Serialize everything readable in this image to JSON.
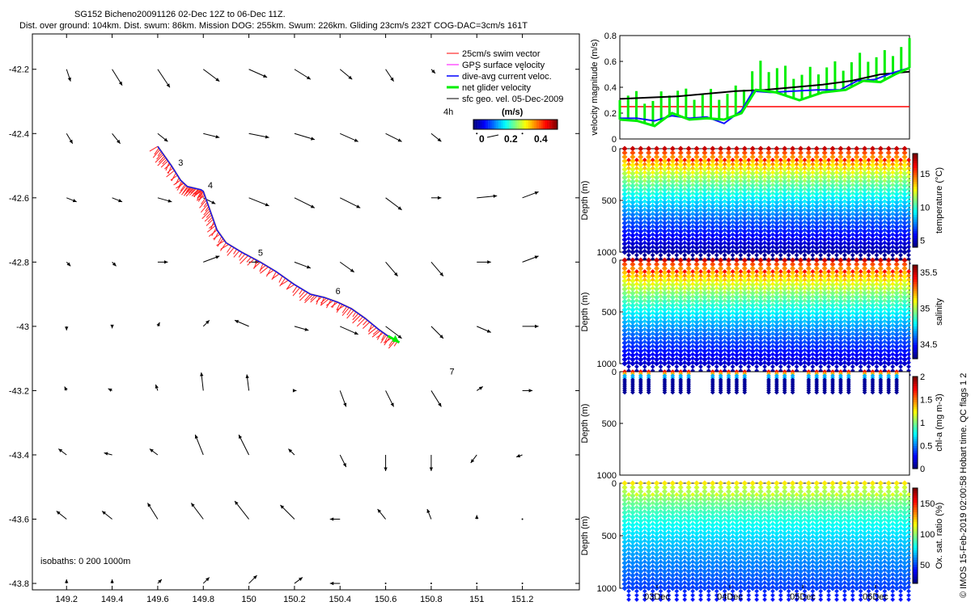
{
  "title_line1": "SG152 Bicheno20091126 02-Dec 12Z to 06-Dec 11Z.",
  "title_line2": "Dist. over ground: 104km. Dist. swum: 86km. Mission DOG: 255km. Swum: 226km. Gliding 23cm/s 232T COG-DAC=3cm/s 161T",
  "copyright": "© IMOS 15-Feb-2019 02:00:58 Hobart time. QC flags 1  2",
  "chart_data": [
    {
      "id": "map",
      "type": "scatter",
      "title": "SG152 glider track with current vectors",
      "xlim": [
        149.05,
        151.45
      ],
      "ylim": [
        -43.82,
        -42.09
      ],
      "xticks": [
        149.2,
        149.4,
        149.6,
        149.8,
        150,
        150.2,
        150.4,
        150.6,
        150.8,
        151,
        151.2
      ],
      "xtick_labels": [
        "149.2",
        "149.4",
        "149.6",
        "149.8",
        "150",
        "150.2",
        "150.4",
        "150.6",
        "150.8",
        "151",
        "151.2"
      ],
      "yticks": [
        -42.2,
        -42.4,
        -42.6,
        -42.8,
        -43,
        -43.2,
        -43.4,
        -43.6,
        -43.8
      ],
      "ytick_labels": [
        "-42.2",
        "-42.4",
        "-42.6",
        "-42.8",
        "-43",
        "-43.2",
        "-43.4",
        "-43.6",
        "-43.8"
      ],
      "legend": [
        "25cm/s swim vector",
        "GPS surface velocity",
        "dive-avg current veloc.",
        "net glider velocity",
        "sfc geo. vel. 05-Dec-2009"
      ],
      "legend_placement": "top-right",
      "track": [
        [
          149.6,
          -42.44
        ],
        [
          149.63,
          -42.47
        ],
        [
          149.66,
          -42.5
        ],
        [
          149.7,
          -42.545
        ],
        [
          149.73,
          -42.565
        ],
        [
          149.76,
          -42.57
        ],
        [
          149.79,
          -42.575
        ],
        [
          149.8,
          -42.58
        ],
        [
          149.82,
          -42.62
        ],
        [
          149.84,
          -42.66
        ],
        [
          149.86,
          -42.7
        ],
        [
          149.9,
          -42.74
        ],
        [
          149.97,
          -42.77
        ],
        [
          150.05,
          -42.8
        ],
        [
          150.12,
          -42.83
        ],
        [
          150.2,
          -42.87
        ],
        [
          150.27,
          -42.9
        ],
        [
          150.33,
          -42.91
        ],
        [
          150.39,
          -42.925
        ],
        [
          150.45,
          -42.945
        ],
        [
          150.51,
          -42.975
        ],
        [
          150.57,
          -43.01
        ],
        [
          150.61,
          -43.03
        ],
        [
          150.66,
          -43.05
        ]
      ],
      "time_markers": [
        {
          "label": "3",
          "lon": 149.69,
          "lat": -42.5
        },
        {
          "label": "4",
          "lon": 149.82,
          "lat": -42.57
        },
        {
          "label": "5",
          "lon": 150.04,
          "lat": -42.78
        },
        {
          "label": "6",
          "lon": 150.38,
          "lat": -42.9
        },
        {
          "label": "7",
          "lon": 150.88,
          "lat": -43.15
        }
      ],
      "current_vectors": {
        "lons": [
          149.2,
          149.4,
          149.6,
          149.8,
          150,
          150.2,
          150.4,
          150.6,
          150.8,
          151,
          151.2
        ],
        "lats": [
          -42.2,
          -42.4,
          -42.6,
          -42.8,
          -43,
          -43.2,
          -43.4,
          -43.6,
          -43.8
        ],
        "u": [
          [
            0.02,
            0.05,
            0.06,
            0.08,
            0.09,
            0.08,
            0.06,
            0.04,
            0.02,
            0.0,
            0.0
          ],
          [
            0.03,
            0.04,
            0.05,
            0.08,
            0.1,
            0.1,
            0.09,
            0.08,
            0.05,
            0.0,
            0.0
          ],
          [
            0.05,
            0.05,
            0.07,
            0.06,
            0.1,
            0.1,
            0.1,
            0.08,
            0.05,
            0.1,
            0.08
          ],
          [
            0.02,
            0.02,
            0.05,
            0.08,
            0.05,
            0.08,
            0.07,
            0.06,
            0.06,
            0.07,
            0.08
          ],
          [
            0.0,
            0.0,
            0.01,
            0.03,
            -0.07,
            0.07,
            0.09,
            0.08,
            0.06,
            0.07,
            0.08
          ],
          [
            -0.01,
            -0.02,
            -0.01,
            -0.01,
            -0.01,
            0.01,
            0.03,
            0.04,
            0.05,
            0.03,
            0.05
          ],
          [
            -0.04,
            -0.04,
            -0.04,
            -0.04,
            -0.05,
            -0.03,
            0.03,
            0.0,
            0.0,
            -0.03,
            -0.03
          ],
          [
            -0.05,
            -0.05,
            -0.05,
            -0.06,
            -0.07,
            -0.07,
            -0.05,
            -0.04,
            -0.02,
            0.0,
            0.0
          ],
          [
            0.0,
            0.0,
            0.02,
            0.03,
            0.04,
            0.04,
            -0.05,
            0.0,
            0.0,
            0.0,
            0.0
          ]
        ],
        "v": [
          [
            -0.06,
            -0.08,
            -0.09,
            -0.06,
            -0.04,
            -0.05,
            -0.05,
            -0.06,
            -0.02,
            0.0,
            0.0
          ],
          [
            -0.05,
            -0.05,
            -0.04,
            -0.02,
            -0.02,
            -0.03,
            -0.04,
            -0.04,
            -0.04,
            0.0,
            0.0
          ],
          [
            -0.02,
            -0.02,
            -0.02,
            -0.03,
            -0.04,
            -0.05,
            -0.05,
            -0.06,
            0.0,
            0.01,
            0.03
          ],
          [
            -0.02,
            -0.02,
            0.0,
            0.03,
            0.0,
            -0.03,
            -0.05,
            -0.07,
            -0.07,
            0.0,
            0.03
          ],
          [
            -0.02,
            -0.01,
            0.02,
            0.03,
            0.03,
            -0.02,
            -0.04,
            -0.06,
            -0.06,
            -0.03,
            0.0
          ],
          [
            0.02,
            0.01,
            0.03,
            0.09,
            0.08,
            0.0,
            -0.08,
            -0.08,
            -0.08,
            0.02,
            0.0
          ],
          [
            0.03,
            0.01,
            0.03,
            0.1,
            0.1,
            0.03,
            -0.06,
            -0.08,
            -0.08,
            -0.04,
            -0.01
          ],
          [
            0.04,
            0.04,
            0.08,
            0.08,
            0.09,
            0.07,
            0.0,
            0.05,
            0.05,
            0.02,
            0.0
          ],
          [
            0.02,
            0.02,
            0.02,
            0.03,
            0.04,
            0.03,
            0.0,
            0.0,
            0.0,
            0.0,
            0.0
          ]
        ]
      },
      "scale_label": "4h",
      "colorbar_label": "(m/s)",
      "colorbar_ticks": [
        "0",
        "0.2",
        "0.4"
      ],
      "isobaths_label": "isobaths: 0   200  1000m"
    },
    {
      "id": "velocity",
      "type": "line",
      "ylabel": "velocity magnitude (m/s)",
      "ylim": [
        0,
        0.8
      ],
      "yticks": [
        "0",
        "0.2",
        "0.4",
        "0.6",
        "0.8"
      ],
      "reference_line": 0.25,
      "series": [
        {
          "name": "sfc geo. vel.",
          "color": "#000000",
          "values": [
            [
              0,
              0.31
            ],
            [
              0.1,
              0.32
            ],
            [
              0.2,
              0.33
            ],
            [
              0.3,
              0.35
            ],
            [
              0.4,
              0.37
            ],
            [
              0.5,
              0.38
            ],
            [
              0.6,
              0.4
            ],
            [
              0.7,
              0.42
            ],
            [
              0.8,
              0.45
            ],
            [
              0.9,
              0.5
            ],
            [
              1,
              0.52
            ]
          ]
        },
        {
          "name": "dive-avg current veloc.",
          "color": "#1010ff",
          "values": [
            [
              0,
              0.16
            ],
            [
              0.06,
              0.16
            ],
            [
              0.12,
              0.14
            ],
            [
              0.18,
              0.18
            ],
            [
              0.24,
              0.16
            ],
            [
              0.3,
              0.17
            ],
            [
              0.36,
              0.12
            ],
            [
              0.42,
              0.22
            ],
            [
              0.46,
              0.37
            ],
            [
              0.52,
              0.36
            ],
            [
              0.6,
              0.37
            ],
            [
              0.68,
              0.38
            ],
            [
              0.76,
              0.38
            ],
            [
              0.82,
              0.45
            ],
            [
              0.88,
              0.46
            ],
            [
              0.94,
              0.51
            ],
            [
              1,
              0.55
            ]
          ]
        },
        {
          "name": "net glider velocity",
          "color": "#00ee00",
          "values": [
            [
              0,
              0.15
            ],
            [
              0.06,
              0.14
            ],
            [
              0.12,
              0.1
            ],
            [
              0.18,
              0.2
            ],
            [
              0.24,
              0.15
            ],
            [
              0.3,
              0.16
            ],
            [
              0.36,
              0.15
            ],
            [
              0.42,
              0.2
            ],
            [
              0.47,
              0.38
            ],
            [
              0.54,
              0.36
            ],
            [
              0.62,
              0.3
            ],
            [
              0.7,
              0.36
            ],
            [
              0.78,
              0.38
            ],
            [
              0.84,
              0.45
            ],
            [
              0.9,
              0.44
            ],
            [
              0.95,
              0.5
            ],
            [
              1,
              0.55
            ]
          ]
        }
      ]
    },
    {
      "id": "temperature",
      "type": "heatmap",
      "ylabel": "Depth (m)",
      "yticks": [
        "0",
        "500",
        "1000"
      ],
      "colorbar_label": "temperature (°C)",
      "colorbar_ticks": [
        "5",
        "10",
        "15"
      ],
      "crange": [
        4,
        18
      ],
      "surface_value": 17,
      "deep_value": 4.5,
      "max_depth": 1000,
      "dives": 36
    },
    {
      "id": "salinity",
      "type": "heatmap",
      "ylabel": "Depth (m)",
      "yticks": [
        "0",
        "500",
        "1000"
      ],
      "colorbar_label": "salinity",
      "colorbar_ticks": [
        "34.5",
        "35",
        "35.5"
      ],
      "crange": [
        34.3,
        35.6
      ],
      "surface_value": 35.5,
      "deep_value": 34.4,
      "max_depth": 1000,
      "dives": 36
    },
    {
      "id": "chla",
      "type": "heatmap",
      "ylabel": "Depth (m)",
      "yticks": [
        "0",
        "500",
        "1000"
      ],
      "colorbar_label": "chl-a (mg m-3)",
      "colorbar_ticks": [
        "0",
        "0.5",
        "1",
        "1.5",
        "2"
      ],
      "crange": [
        0,
        2
      ],
      "max_depth": 1000,
      "profile_depth": 200,
      "active_dives": [
        0,
        1,
        2,
        3,
        5,
        6,
        7,
        8,
        11,
        12,
        13,
        14,
        15,
        18,
        19,
        20,
        21,
        23,
        24,
        25,
        26,
        27,
        28,
        30,
        31,
        32,
        33,
        34
      ]
    },
    {
      "id": "oxygen",
      "type": "heatmap",
      "ylabel": "Depth (m)",
      "yticks": [
        "0",
        "500",
        "1000"
      ],
      "colorbar_label": "Ox. sat. ratio (%)",
      "colorbar_ticks": [
        "50",
        "100",
        "150"
      ],
      "crange": [
        20,
        175
      ],
      "surface_value": 120,
      "deep_value": 50,
      "max_depth": 1000,
      "dives": 36,
      "xtick_labels": [
        "03Dec",
        "04Dec",
        "05Dec",
        "06Dec"
      ]
    }
  ]
}
